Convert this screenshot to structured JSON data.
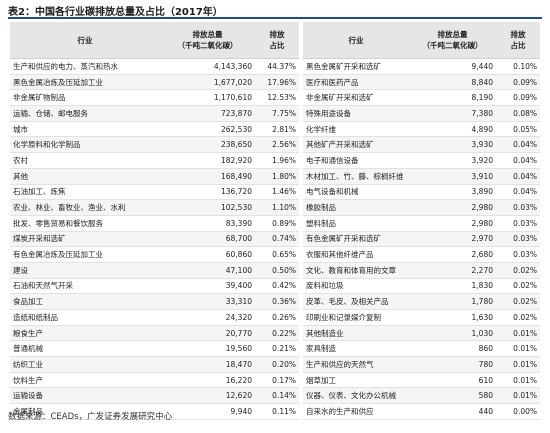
{
  "title": "表2：中国各行业碳排放总量及占比（2017年）",
  "table": {
    "headers": [
      [
        "行业"
      ],
      [
        "排放总量",
        "（千吨二氧化碳）"
      ],
      [
        "排放",
        "占比"
      ],
      [
        "行业"
      ],
      [
        "排放总量",
        "（千吨二氧化碳）"
      ],
      [
        "排放",
        "占比"
      ]
    ],
    "rows": [
      [
        "生产和供应的电力、蒸汽和热水",
        "4,143,360",
        "44.37%",
        "黑色金属矿开采和选矿",
        "9,440",
        "0.10%"
      ],
      [
        "黑色金属冶炼及压延加工业",
        "1,677,020",
        "17.96%",
        "医疗和医药产品",
        "8,840",
        "0.09%"
      ],
      [
        "非金属矿物制品",
        "1,170,610",
        "12.53%",
        "非金属矿开采和选矿",
        "8,190",
        "0.09%"
      ],
      [
        "运输、仓储、邮电服务",
        "723,870",
        "7.75%",
        "特殊用途设备",
        "7,380",
        "0.08%"
      ],
      [
        "城市",
        "262,530",
        "2.81%",
        "化学纤维",
        "4,890",
        "0.05%"
      ],
      [
        "化学原料和化学制品",
        "238,650",
        "2.56%",
        "其他矿产开采和选矿",
        "3,930",
        "0.04%"
      ],
      [
        "农村",
        "182,920",
        "1.96%",
        "电子和通信设备",
        "3,920",
        "0.04%"
      ],
      [
        "其他",
        "168,490",
        "1.80%",
        "木材加工、竹、藤、棕榈纤维",
        "3,910",
        "0.04%"
      ],
      [
        "石油加工、炼焦",
        "136,720",
        "1.46%",
        "电气设备和机械",
        "3,890",
        "0.04%"
      ],
      [
        "农业、林业、畜牧业、渔业、水利",
        "102,530",
        "1.10%",
        "橡胶制品",
        "2,980",
        "0.03%"
      ],
      [
        "批发、零售贸易和餐饮服务",
        "83,390",
        "0.89%",
        "塑料制品",
        "2,980",
        "0.03%"
      ],
      [
        "煤炭开采和选矿",
        "68,700",
        "0.74%",
        "有色金属矿开采和选矿",
        "2,970",
        "0.03%"
      ],
      [
        "有色金属冶炼及压延加工业",
        "60,860",
        "0.65%",
        "衣服和其他纤维产品",
        "2,680",
        "0.03%"
      ],
      [
        "建设",
        "47,100",
        "0.50%",
        "文化、教育和体育用的文章",
        "2,270",
        "0.02%"
      ],
      [
        "石油和天然气开采",
        "39,400",
        "0.42%",
        "废料和垃圾",
        "1,830",
        "0.02%"
      ],
      [
        "食品加工",
        "33,310",
        "0.36%",
        "皮革、毛皮、及相关产品",
        "1,780",
        "0.02%"
      ],
      [
        "造纸和纸制品",
        "24,320",
        "0.26%",
        "印刷业和记录媒介复制",
        "1,630",
        "0.02%"
      ],
      [
        "粮食生产",
        "20,770",
        "0.22%",
        "其他制造业",
        "1,030",
        "0.01%"
      ],
      [
        "普通机械",
        "19,560",
        "0.21%",
        "家具制造",
        "860",
        "0.01%"
      ],
      [
        "纺织工业",
        "18,470",
        "0.20%",
        "生产和供应的天然气",
        "780",
        "0.01%"
      ],
      [
        "饮料生产",
        "16,220",
        "0.17%",
        "烟草加工",
        "610",
        "0.01%"
      ],
      [
        "运输设备",
        "12,620",
        "0.14%",
        "仪器、仪表、文化办公机械",
        "580",
        "0.01%"
      ],
      [
        "金属制品",
        "9,940",
        "0.11%",
        "自来水的生产和供应",
        "440",
        "0.00%"
      ]
    ]
  },
  "source": "数据来源：CEADs，广发证券发展研究中心"
}
